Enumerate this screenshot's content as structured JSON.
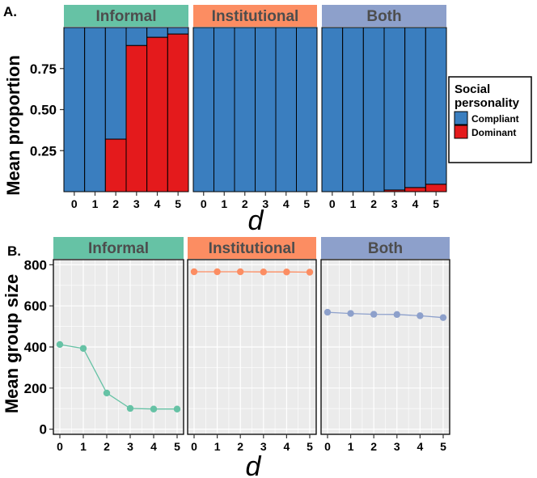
{
  "colors": {
    "informal": "#66c2a5",
    "institutional": "#fc8d62",
    "both": "#8da0cb",
    "compliant": "#3a7ebf",
    "dominant": "#e41a1c",
    "panel_bg": "#ebebeb",
    "grid": "#ffffff"
  },
  "chart_data": [
    {
      "type": "bar",
      "panel_label": "A.",
      "ylabel": "Mean proportion",
      "xlabel": "d",
      "ylim": [
        0,
        1
      ],
      "y_ticks": [
        0.25,
        0.5,
        0.75
      ],
      "y_tick_labels": [
        "0.25",
        "0.50",
        "0.75"
      ],
      "categories": [
        "0",
        "1",
        "2",
        "3",
        "4",
        "5"
      ],
      "stacked": true,
      "legend": {
        "title_line1": "Social",
        "title_line2": "personality",
        "entries": [
          {
            "label": "Compliant",
            "color_key": "compliant"
          },
          {
            "label": "Dominant",
            "color_key": "dominant"
          }
        ],
        "placement": "right"
      },
      "facets": [
        {
          "label": "Informal",
          "color_key": "informal",
          "dominant": [
            0,
            0,
            0.32,
            0.89,
            0.94,
            0.96
          ]
        },
        {
          "label": "Institutional",
          "color_key": "institutional",
          "dominant": [
            0,
            0,
            0,
            0,
            0,
            0
          ]
        },
        {
          "label": "Both",
          "color_key": "both",
          "dominant": [
            0,
            0,
            0,
            0.01,
            0.025,
            0.045
          ]
        }
      ]
    },
    {
      "type": "line",
      "panel_label": "B.",
      "ylabel": "Mean group size",
      "xlabel": "d",
      "x": [
        0,
        1,
        2,
        3,
        4,
        5
      ],
      "x_tick_labels": [
        "0",
        "1",
        "2",
        "3",
        "4",
        "5"
      ],
      "ylim": [
        -25,
        825
      ],
      "y_ticks": [
        0,
        200,
        400,
        600,
        800
      ],
      "y_tick_labels": [
        "0",
        "200",
        "400",
        "600",
        "800"
      ],
      "facets": [
        {
          "label": "Informal",
          "color_key": "informal",
          "values": [
            412,
            393,
            176,
            101,
            98,
            98
          ]
        },
        {
          "label": "Institutional",
          "color_key": "institutional",
          "values": [
            766,
            766,
            766,
            765,
            765,
            764
          ]
        },
        {
          "label": "Both",
          "color_key": "both",
          "values": [
            569,
            563,
            559,
            558,
            552,
            543
          ]
        }
      ]
    }
  ]
}
